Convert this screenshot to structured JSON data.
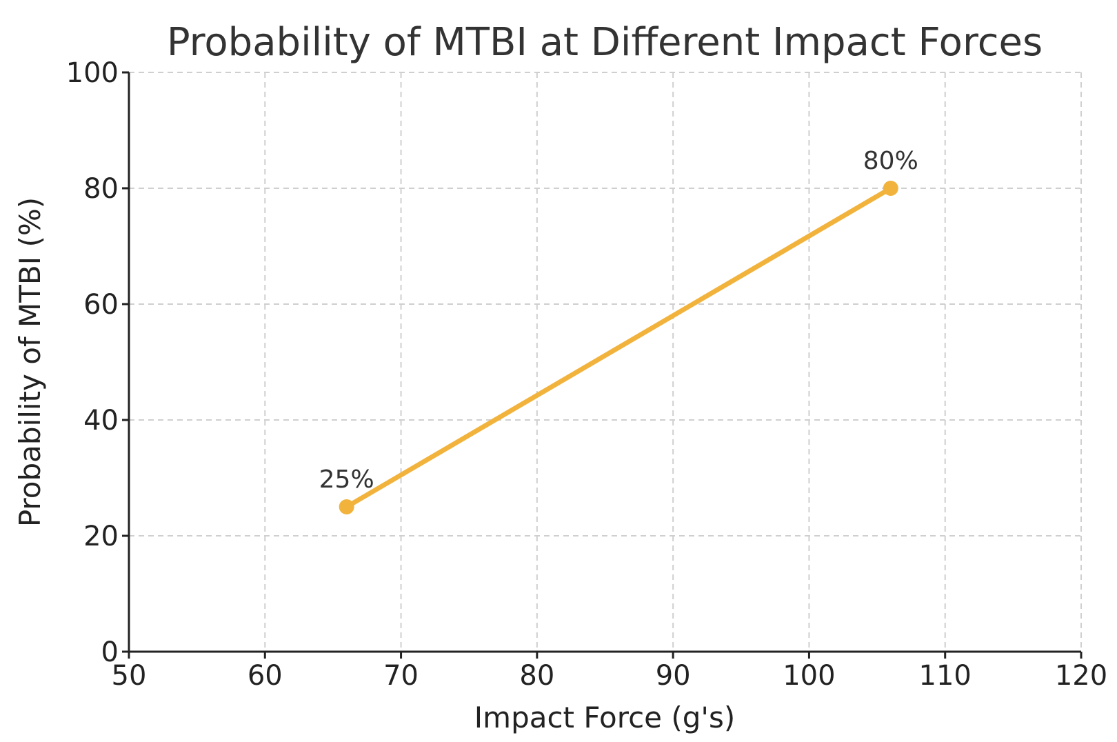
{
  "chart_data": {
    "type": "line",
    "title": "Probability of MTBI at Different Impact Forces",
    "xlabel": "Impact Force (g's)",
    "ylabel": "Probability of MTBI (%)",
    "xlim": [
      50,
      120
    ],
    "ylim": [
      0,
      100
    ],
    "xticks": [
      50,
      60,
      70,
      80,
      90,
      100,
      110,
      120
    ],
    "yticks": [
      0,
      20,
      40,
      60,
      80,
      100
    ],
    "grid": true,
    "series": [
      {
        "name": "Probability of MTBI",
        "color": "#F2B33D",
        "points": [
          {
            "x": 66,
            "y": 25,
            "label": "25%"
          },
          {
            "x": 106,
            "y": 80,
            "label": "80%"
          }
        ]
      }
    ]
  }
}
